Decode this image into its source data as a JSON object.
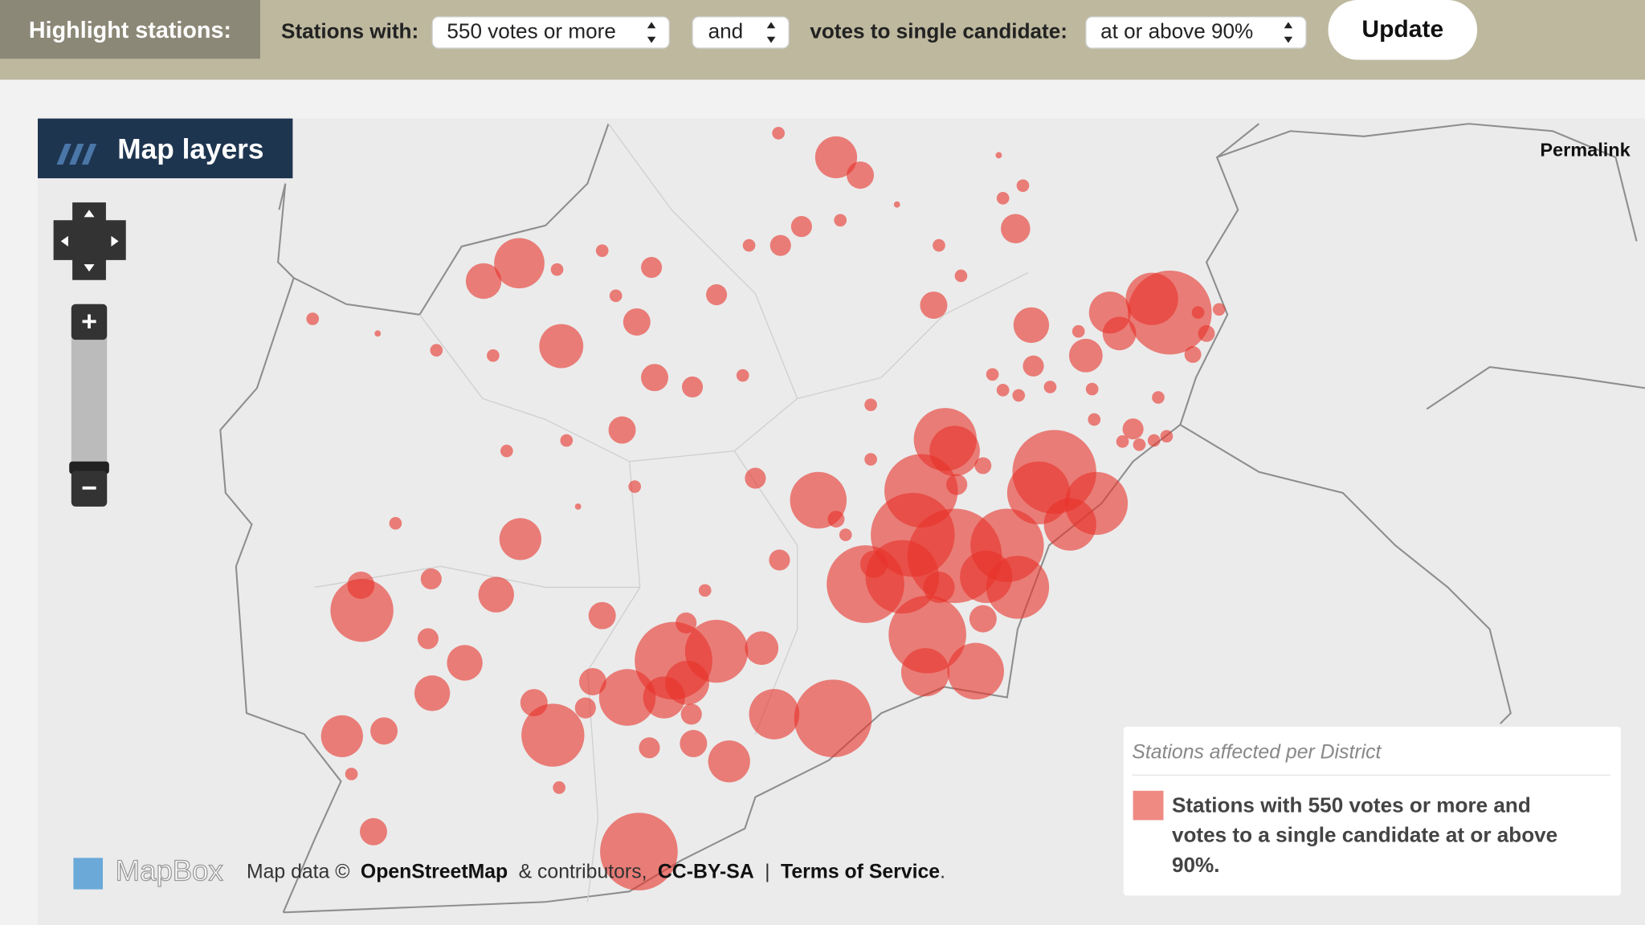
{
  "toolbar": {
    "title": "Highlight stations:",
    "stations_label": "Stations with:",
    "votes_select": "550 votes or more",
    "conjunction_select": "and",
    "candidate_label": "votes to single candidate:",
    "share_select": "at or above 90%",
    "button": "Update"
  },
  "map": {
    "layers_button": "Map layers",
    "permalink": "Permalink",
    "zoom_in": "+",
    "zoom_out": "−",
    "logo": "MapBox",
    "attribution": {
      "prefix": "Map data ©",
      "osm": "OpenStreetMap",
      "contributors": "& contributors,",
      "license": "CC-BY-SA",
      "separator": "|",
      "terms": "Terms of Service",
      "end": "."
    }
  },
  "legend": {
    "title": "Stations affected per District",
    "item_lines": [
      "Stations with 550 votes or more and",
      "votes to a single candidate at or above",
      "90%."
    ]
  }
}
